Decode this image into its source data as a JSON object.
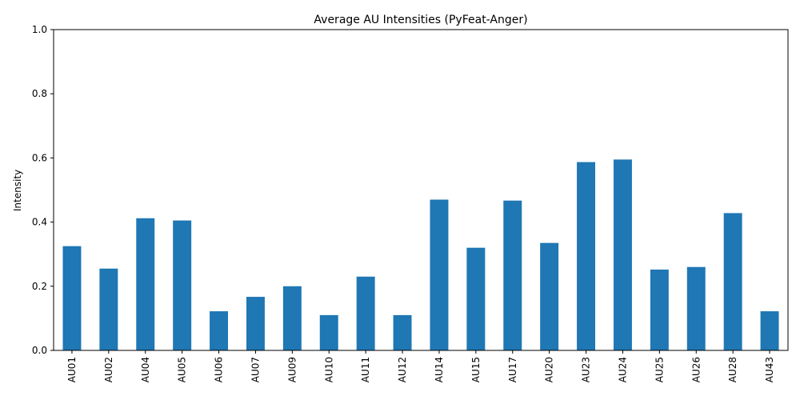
{
  "chart_data": {
    "type": "bar",
    "title": "Average AU Intensities (PyFeat-Anger)",
    "xlabel": "",
    "ylabel": "Intensity",
    "ylim": [
      0,
      1.0
    ],
    "yticks": [
      "0.0",
      "0.2",
      "0.4",
      "0.6",
      "0.8",
      "1.0"
    ],
    "categories": [
      "AU01",
      "AU02",
      "AU04",
      "AU05",
      "AU06",
      "AU07",
      "AU09",
      "AU10",
      "AU11",
      "AU12",
      "AU14",
      "AU15",
      "AU17",
      "AU20",
      "AU23",
      "AU24",
      "AU25",
      "AU26",
      "AU28",
      "AU43"
    ],
    "values": [
      0.325,
      0.255,
      0.412,
      0.405,
      0.122,
      0.167,
      0.2,
      0.11,
      0.23,
      0.11,
      0.47,
      0.32,
      0.467,
      0.335,
      0.587,
      0.595,
      0.252,
      0.26,
      0.428,
      0.122
    ],
    "bar_color": "#1f77b4",
    "grid": false,
    "legend": "none"
  }
}
